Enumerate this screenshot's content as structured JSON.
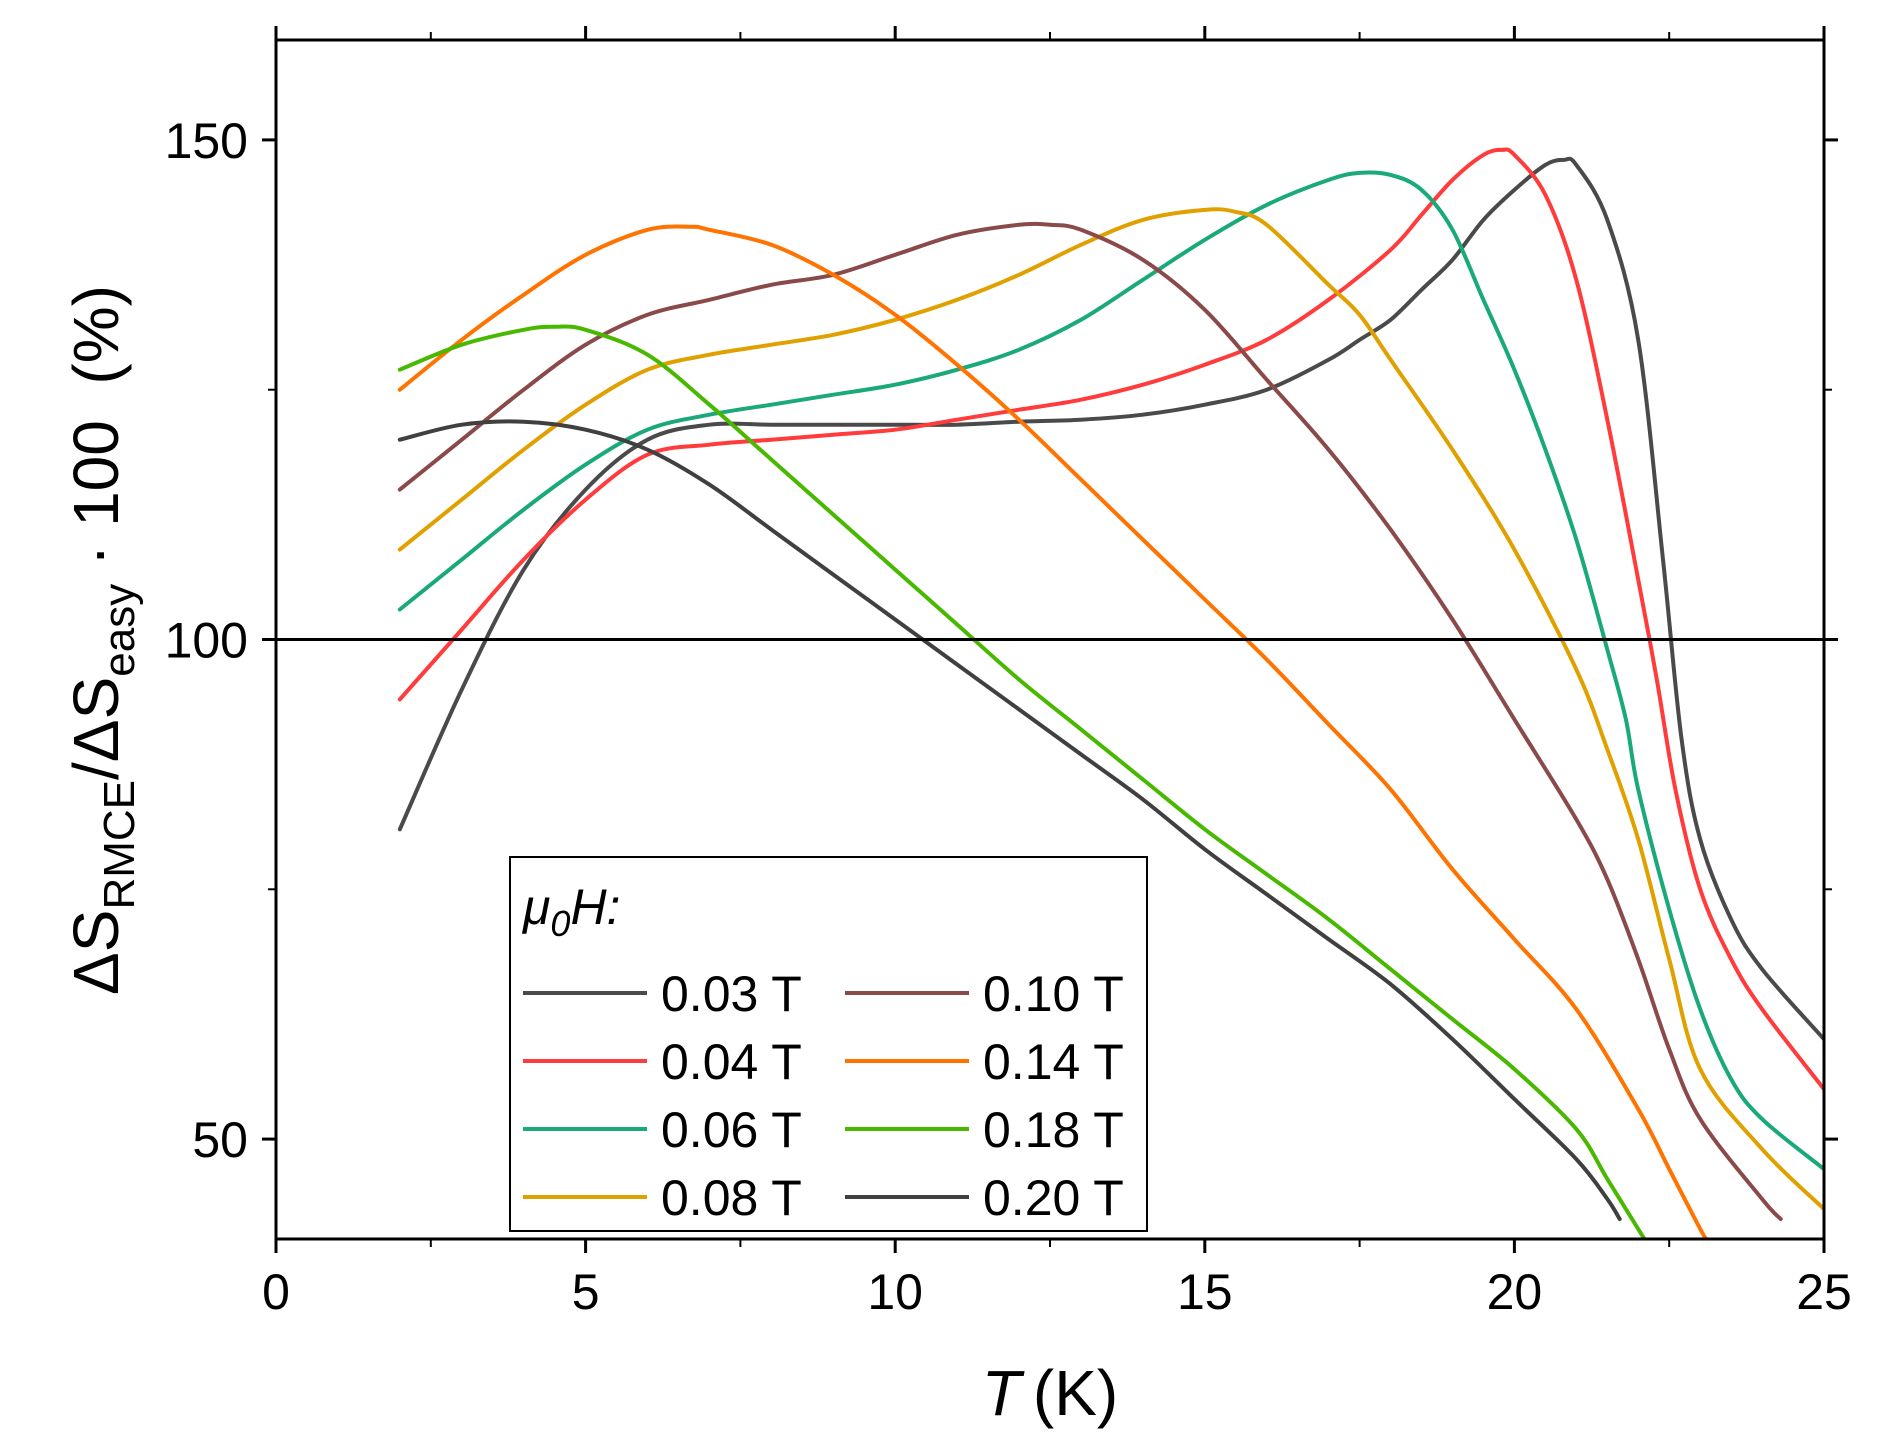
{
  "chart_data": {
    "type": "line",
    "title": "",
    "xlabel": "T (K)",
    "xlabel_var": "T",
    "xlabel_unit": "(K)",
    "ylabel": "ΔS_RMCE/ΔS_easy · 100 (%)",
    "ylabel_parts": {
      "delta1": "ΔS",
      "sub1": "RMCE",
      "slash": "/ΔS",
      "sub2": "easy",
      "tail": " · 100  (%)"
    },
    "xlim": [
      0,
      25
    ],
    "ylim": [
      40,
      160
    ],
    "x_ticks": [
      0,
      5,
      10,
      15,
      20,
      25
    ],
    "x_tick_labels": [
      "0",
      "5",
      "10",
      "15",
      "20",
      "25"
    ],
    "y_ticks": [
      50,
      100,
      150
    ],
    "y_tick_labels": [
      "50",
      "100",
      "150"
    ],
    "reference_line": 100,
    "legend": {
      "title_mu": "μ",
      "title_sub": "0",
      "title_rest": "H:",
      "placement": "bottom-left"
    },
    "series": [
      {
        "name": "0.03 T",
        "color": "#4a4a4a",
        "x": [
          2,
          3,
          4,
          5,
          6,
          7,
          8,
          9,
          10,
          11,
          12,
          13,
          14,
          15,
          16,
          17,
          17.5,
          18,
          18.5,
          19,
          19.5,
          20,
          20.5,
          20.8,
          21,
          21.5,
          22,
          22.4,
          22.7,
          23,
          23.5,
          24,
          25
        ],
        "y": [
          81,
          95,
          107,
          115,
          120,
          121.5,
          121.5,
          121.5,
          121.5,
          121.5,
          121.8,
          122,
          122.5,
          123.5,
          125,
          128,
          130,
          132,
          135,
          138,
          142,
          145,
          147.5,
          148,
          147.5,
          142,
          130,
          108,
          90,
          80,
          72,
          67,
          60
        ]
      },
      {
        "name": "0.04 T",
        "color": "#ff3b3b",
        "x": [
          2,
          3,
          4,
          5,
          6,
          7,
          8,
          9,
          10,
          11,
          12,
          13,
          14,
          15,
          16,
          17,
          18,
          18.5,
          19,
          19.5,
          19.8,
          20,
          20.5,
          21,
          21.5,
          22,
          22.3,
          22.6,
          23,
          23.5,
          24,
          25
        ],
        "y": [
          94,
          101,
          108,
          114,
          118.5,
          119.5,
          120,
          120.5,
          121,
          122,
          123,
          124,
          125.5,
          127.5,
          130,
          134,
          139,
          142.5,
          146,
          148.5,
          149,
          148.5,
          144.5,
          136,
          122,
          106,
          96,
          85,
          75,
          68,
          63,
          55
        ]
      },
      {
        "name": "0.06 T",
        "color": "#1aa97a",
        "x": [
          2,
          3,
          4,
          5,
          6,
          7,
          8,
          9,
          10,
          11,
          12,
          13,
          14,
          15,
          16,
          17,
          17.5,
          18,
          18.5,
          19,
          19.5,
          20,
          20.5,
          21,
          21.5,
          21.8,
          22,
          22.5,
          23,
          23.5,
          24,
          25
        ],
        "y": [
          103,
          108,
          113,
          117.5,
          121,
          122.5,
          123.5,
          124.5,
          125.5,
          127,
          129,
          132,
          136,
          140,
          143.5,
          146,
          146.7,
          146.5,
          145,
          141,
          134,
          127,
          119,
          110,
          99,
          92,
          85,
          73,
          63,
          56,
          52,
          47
        ]
      },
      {
        "name": "0.08 T",
        "color": "#e0a100",
        "x": [
          2,
          3,
          4,
          5,
          6,
          7,
          8,
          9,
          10,
          11,
          12,
          13,
          14,
          15,
          15.5,
          16,
          17,
          17.5,
          18,
          19,
          20,
          21,
          21.5,
          22,
          22.5,
          23,
          24,
          25
        ],
        "y": [
          109,
          114,
          119,
          123.5,
          127,
          128.5,
          129.5,
          130.5,
          132,
          134,
          136.5,
          139.5,
          142,
          143,
          142.8,
          141.5,
          135.5,
          132.5,
          128,
          119,
          109,
          97,
          89,
          80,
          68,
          57,
          49,
          43
        ]
      },
      {
        "name": "0.10 T",
        "color": "#8b4a4a",
        "x": [
          2,
          3,
          4,
          5,
          6,
          7,
          8,
          9,
          10,
          11,
          12,
          12.5,
          13,
          14,
          15,
          16,
          17,
          18,
          19,
          20,
          21,
          21.5,
          22,
          22.5,
          23,
          24,
          24.3
        ],
        "y": [
          115,
          120,
          125,
          129.5,
          132.5,
          134,
          135.5,
          136.5,
          138.5,
          140.5,
          141.5,
          141.5,
          141,
          138,
          133,
          126,
          119,
          111,
          102,
          92,
          82,
          76,
          68,
          59,
          52,
          44,
          42
        ]
      },
      {
        "name": "0.14 T",
        "color": "#ff7300",
        "x": [
          2,
          3,
          4,
          5,
          6,
          6.7,
          7,
          8,
          9,
          10,
          11,
          12,
          13,
          14,
          15,
          16,
          17,
          18,
          19,
          20,
          21,
          22,
          22.5,
          23,
          23.1
        ],
        "y": [
          125,
          130,
          134.5,
          138.5,
          141,
          141.3,
          141,
          139.5,
          136.5,
          132.5,
          127.5,
          122,
          116,
          110,
          104,
          98,
          91.5,
          85,
          77,
          70,
          63,
          53,
          47,
          41,
          40
        ]
      },
      {
        "name": "0.18 T",
        "color": "#48b800",
        "x": [
          2,
          3,
          4,
          4.5,
          5,
          6,
          7,
          8,
          9,
          10,
          11,
          12,
          13,
          14,
          15,
          16,
          17,
          18,
          19,
          20,
          21,
          21.5,
          22,
          22.1
        ],
        "y": [
          127,
          129.5,
          131,
          131.3,
          131,
          128.5,
          123.5,
          118,
          112.5,
          107,
          101.5,
          96,
          91,
          86,
          81,
          76.5,
          72,
          67,
          62,
          57,
          51,
          46,
          41,
          40
        ]
      },
      {
        "name": "0.20 T",
        "color": "#404040",
        "x": [
          2,
          3,
          4,
          5,
          6,
          7,
          8,
          9,
          10,
          11,
          12,
          13,
          14,
          15,
          16,
          17,
          18,
          19,
          20,
          21,
          21.5,
          21.7
        ],
        "y": [
          120,
          121.5,
          121.8,
          121,
          119,
          115.5,
          111,
          106.5,
          102,
          97.5,
          93,
          88.5,
          84,
          79,
          74.5,
          70,
          65.5,
          60,
          54,
          48,
          44,
          42
        ]
      }
    ]
  }
}
